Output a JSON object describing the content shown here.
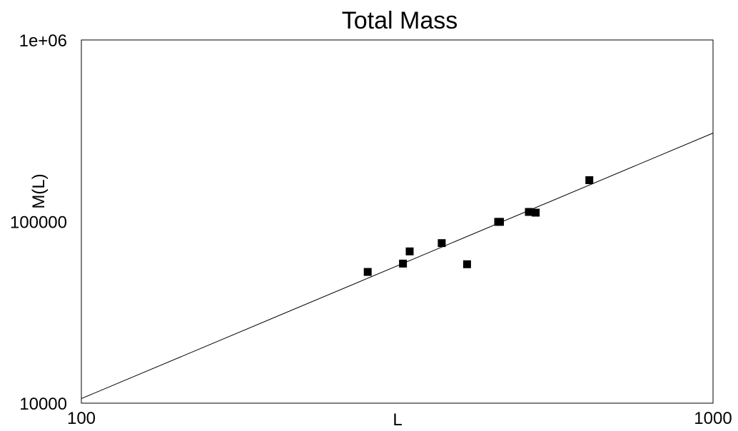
{
  "chart_data": {
    "type": "scatter",
    "title": "Total Mass",
    "xlabel": "L",
    "ylabel": "M(L)",
    "x_scale": "log",
    "y_scale": "log",
    "xlim": [
      100,
      1000
    ],
    "ylim": [
      10000,
      1000000
    ],
    "x_ticks": [
      {
        "value": 100,
        "label": "100"
      },
      {
        "value": 1000,
        "label": "1000"
      }
    ],
    "y_ticks": [
      {
        "value": 10000,
        "label": "10000"
      },
      {
        "value": 100000,
        "label": "100000"
      },
      {
        "value": 1000000,
        "label": "1e+06"
      }
    ],
    "grid": false,
    "legend": false,
    "marker_color": "#000000",
    "line_color": "#000000",
    "series": [
      {
        "kind": "points",
        "marker": "square",
        "x": [
          284,
          323,
          331,
          372,
          408,
          457,
          460,
          511,
          524,
          637
        ],
        "y": [
          52800,
          58700,
          68500,
          76100,
          58200,
          99600,
          99600,
          113000,
          112000,
          169000
        ]
      },
      {
        "kind": "fit-line",
        "x": [
          100,
          1000
        ],
        "y": [
          10600,
          307000
        ]
      }
    ]
  }
}
